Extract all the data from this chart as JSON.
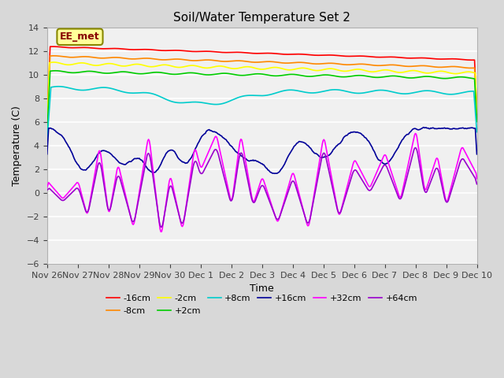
{
  "title": "Soil/Water Temperature Set 2",
  "xlabel": "Time",
  "ylabel": "Temperature (C)",
  "annotation": "EE_met",
  "ylim": [
    -6,
    14
  ],
  "yticks": [
    -6,
    -4,
    -2,
    0,
    2,
    4,
    6,
    8,
    10,
    12,
    14
  ],
  "x_tick_positions": [
    0,
    1,
    2,
    3,
    4,
    5,
    6,
    7,
    8,
    9,
    10,
    11,
    12,
    13,
    14
  ],
  "x_tick_labels": [
    "Nov 26",
    "Nov 27",
    "Nov 28",
    "Nov 29",
    "Nov 30",
    "Dec 1",
    "Dec 2",
    "Dec 3",
    "Dec 4",
    "Dec 5",
    "Dec 6",
    "Dec 7",
    "Dec 8",
    "Dec 9",
    "Dec 10"
  ],
  "series_colors": {
    "-16cm": "#ff0000",
    "-8cm": "#ff8800",
    "-2cm": "#ffff00",
    "+2cm": "#00cc00",
    "+8cm": "#00cccc",
    "+16cm": "#000099",
    "+32cm": "#ff00ff",
    "+64cm": "#9900cc"
  },
  "fig_bg_color": "#d8d8d8",
  "plot_bg_color": "#f0f0f0",
  "grid_color": "#ffffff",
  "annotation_bg": "#ffff99",
  "annotation_fg": "#880000"
}
